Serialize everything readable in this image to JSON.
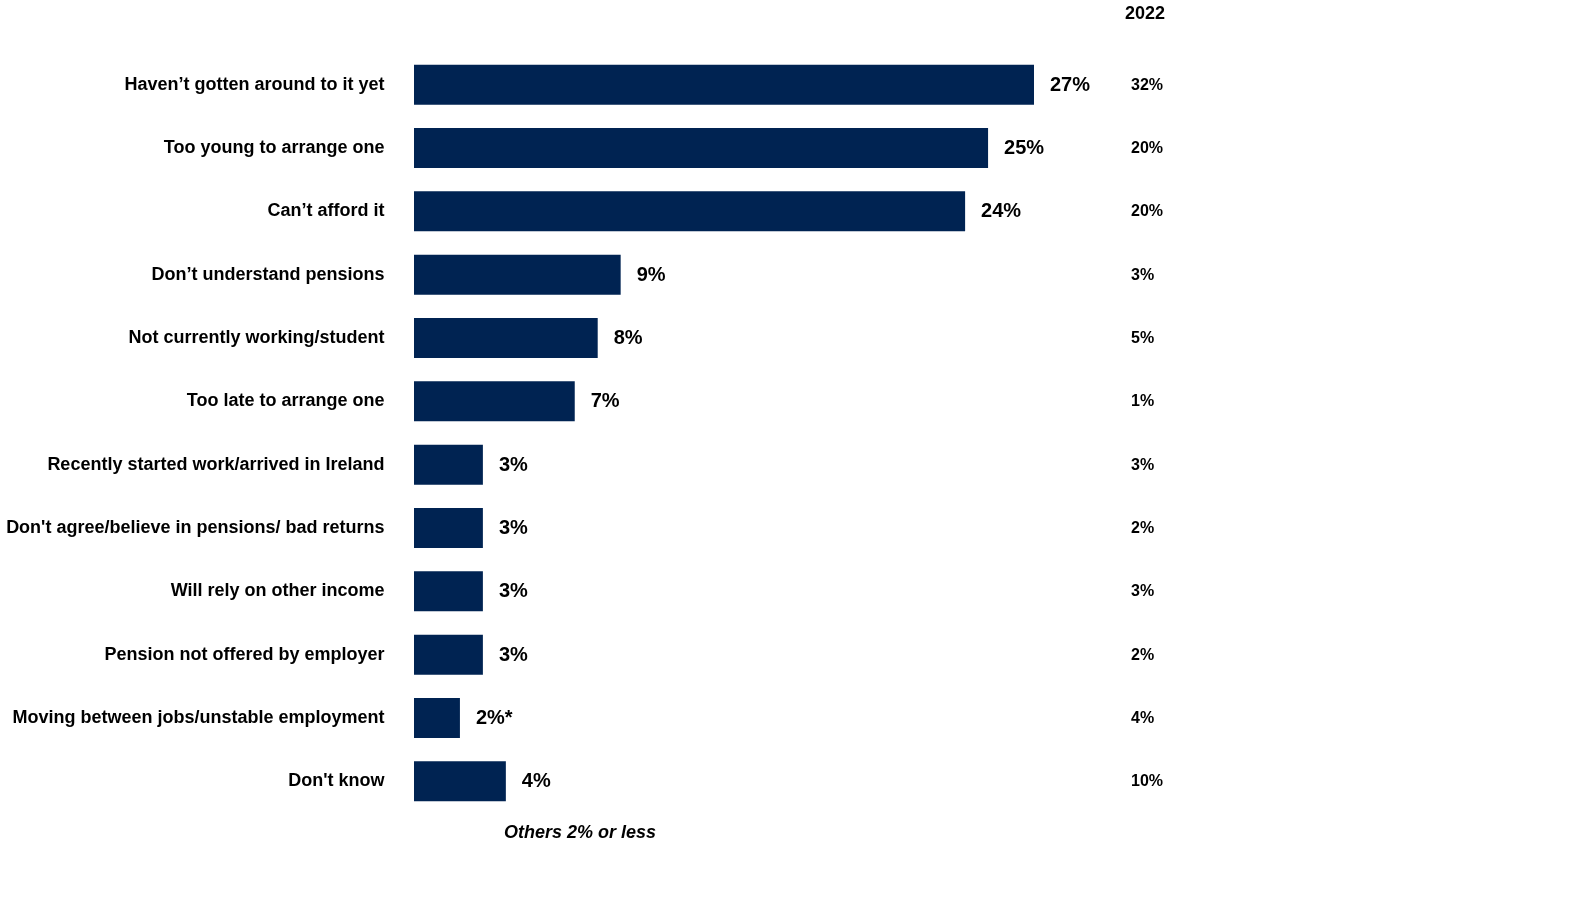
{
  "chart_data": [
    {
      "type": "bar",
      "orientation": "horizontal",
      "categories": [
        "Haven’t gotten around to it yet",
        "Too young to arrange one",
        "Can’t afford it",
        "Don’t understand pensions",
        "Not currently working/student",
        "Too late to arrange one",
        "Recently started work/arrived in Ireland",
        "Don't agree/believe in pensions/ bad returns",
        "Will rely on other income",
        "Pension not offered by employer",
        "Moving between jobs/unstable employment",
        "Don't know"
      ],
      "values": [
        27,
        25,
        24,
        9,
        8,
        7,
        3,
        3,
        3,
        3,
        2,
        4
      ],
      "value_labels": [
        "27%",
        "25%",
        "24%",
        "9%",
        "8%",
        "7%",
        "3%",
        "3%",
        "3%",
        "3%",
        "2%*",
        "4%"
      ],
      "color": "#002352",
      "annotations": [
        "Others 2% or less"
      ]
    },
    {
      "type": "other",
      "title": "2022",
      "annotations": [
        "32%",
        "20%",
        "20%",
        "3%",
        "5%",
        "1%",
        "3%",
        "2%",
        "3%",
        "2%",
        "4%",
        "10%"
      ]
    }
  ]
}
